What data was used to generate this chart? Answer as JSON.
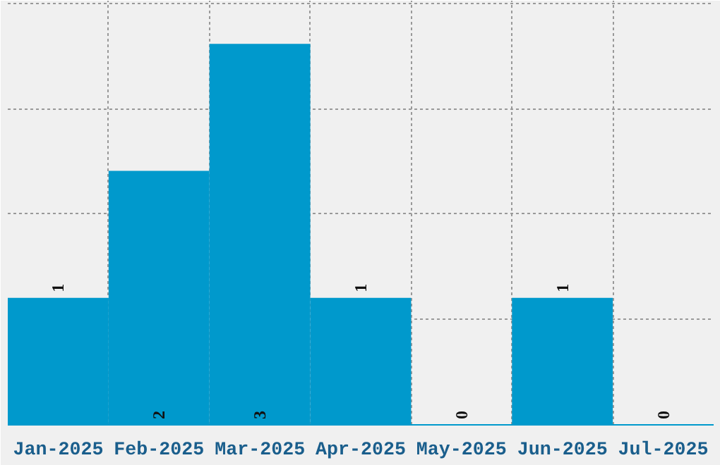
{
  "chart_data": {
    "type": "bar",
    "categories": [
      "Jan-2025",
      "Feb-2025",
      "Mar-2025",
      "Apr-2025",
      "May-2025",
      "Jun-2025",
      "Jul-2025"
    ],
    "values": [
      1,
      2,
      3,
      1,
      0,
      1,
      0
    ],
    "color": "#0099cc",
    "ylim": [
      0,
      3.34
    ],
    "tick_labels": "x",
    "grid": true,
    "data_labels": true
  }
}
